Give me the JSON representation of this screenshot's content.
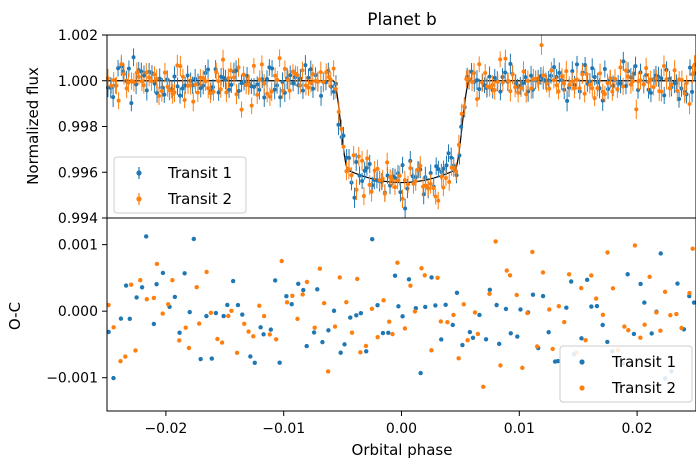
{
  "chart_data": [
    {
      "panel": "top",
      "type": "scatter",
      "title": "Planet b",
      "xlabel": "",
      "ylabel": "Normalized flux",
      "xlim": [
        -0.025,
        0.025
      ],
      "ylim": [
        0.994,
        1.002
      ],
      "x_ticks": [
        -0.02,
        -0.01,
        0.0,
        0.01,
        0.02
      ],
      "y_ticks": [
        0.994,
        0.996,
        0.998,
        1.0,
        1.002
      ],
      "y_tick_labels": [
        "0.994",
        "0.996",
        "0.998",
        "1.000",
        "1.002"
      ],
      "error_bars": true,
      "error_bar_size": 0.0004,
      "legend": {
        "position": "lower-left",
        "entries": [
          "Transit 1",
          "Transit 2"
        ]
      },
      "series": [
        {
          "name": "Transit 1",
          "color": "#1f77b4"
        },
        {
          "name": "Transit 2",
          "color": "#ff7f0e"
        }
      ],
      "model": {
        "type": "transit",
        "baseline": 1.0,
        "depth": 0.00445,
        "ingress_start": -0.0058,
        "ingress_end": -0.0045,
        "egress_start": 0.0045,
        "egress_end": 0.0058,
        "color": "#000000"
      },
      "points_per_series": 230,
      "noise_sd": 0.00042
    },
    {
      "panel": "bottom",
      "type": "scatter",
      "xlabel": "Orbital phase",
      "ylabel": "O-C",
      "xlim": [
        -0.025,
        0.025
      ],
      "ylim": [
        -0.0015,
        0.0014
      ],
      "x_ticks": [
        -0.02,
        -0.01,
        0.0,
        0.01,
        0.02
      ],
      "x_tick_labels": [
        "−0.02",
        "−0.01",
        "0.00",
        "0.01",
        "0.02"
      ],
      "y_ticks": [
        -0.001,
        0.0,
        0.001
      ],
      "y_tick_labels": [
        "−0.001",
        "0.000",
        "0.001"
      ],
      "legend": {
        "position": "lower-right",
        "entries": [
          "Transit 1",
          "Transit 2"
        ]
      },
      "series": [
        {
          "name": "Transit 1",
          "color": "#1f77b4"
        },
        {
          "name": "Transit 2",
          "color": "#ff7f0e"
        }
      ],
      "points_per_series": 110,
      "noise_sd": 0.00045
    }
  ]
}
